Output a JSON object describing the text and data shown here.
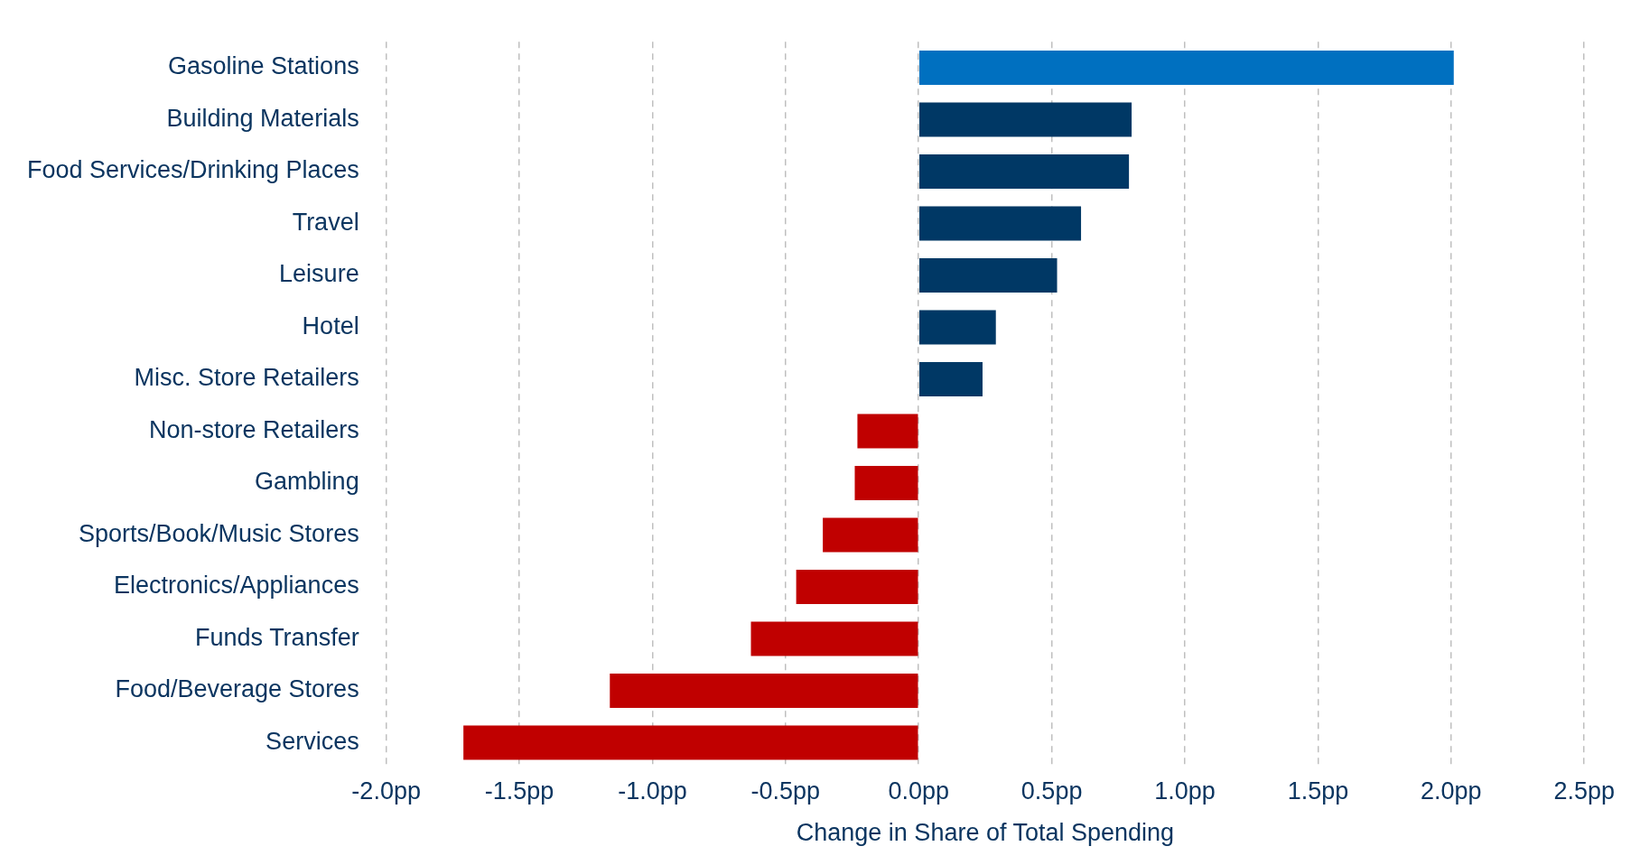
{
  "chart_data": {
    "type": "bar",
    "orientation": "horizontal",
    "xlabel": "Change in Share of Total Spending",
    "categories": [
      "Gasoline Stations",
      "Building Materials",
      "Food Services/Drinking Places",
      "Travel",
      "Leisure",
      "Hotel",
      "Misc. Store Retailers",
      "Non-store Retailers",
      "Gambling",
      "Sports/Book/Music Stores",
      "Electronics/Appliances",
      "Funds Transfer",
      "Food/Beverage Stores",
      "Services"
    ],
    "values": [
      2.01,
      0.8,
      0.79,
      0.61,
      0.52,
      0.29,
      0.24,
      -0.23,
      -0.24,
      -0.36,
      -0.46,
      -0.63,
      -1.16,
      -1.71
    ],
    "colors": [
      "#0070c0",
      "#003865",
      "#003865",
      "#003865",
      "#003865",
      "#003865",
      "#003865",
      "#c00000",
      "#c00000",
      "#c00000",
      "#c00000",
      "#c00000",
      "#c00000",
      "#c00000"
    ],
    "xlim": [
      -2.0,
      2.5
    ],
    "xticks": [
      {
        "value": -2.0,
        "label": "-2.0pp"
      },
      {
        "value": -1.5,
        "label": "-1.5pp"
      },
      {
        "value": -1.0,
        "label": "-1.0pp"
      },
      {
        "value": -0.5,
        "label": "-0.5pp"
      },
      {
        "value": 0,
        "label": "0.0pp"
      },
      {
        "value": 0.5,
        "label": "0.5pp"
      },
      {
        "value": 1.0,
        "label": "1.0pp"
      },
      {
        "value": 1.5,
        "label": "1.5pp"
      },
      {
        "value": 2.0,
        "label": "2.0pp"
      },
      {
        "value": 2.5,
        "label": "2.5pp"
      }
    ],
    "grid": "x",
    "legend": false
  }
}
